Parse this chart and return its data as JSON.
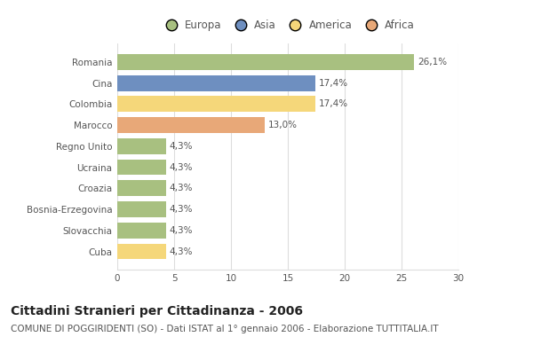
{
  "categories": [
    "Romania",
    "Cina",
    "Colombia",
    "Marocco",
    "Regno Unito",
    "Ucraina",
    "Croazia",
    "Bosnia-Erzegovina",
    "Slovacchia",
    "Cuba"
  ],
  "values": [
    26.1,
    17.4,
    17.4,
    13.0,
    4.3,
    4.3,
    4.3,
    4.3,
    4.3,
    4.3
  ],
  "labels": [
    "26,1%",
    "17,4%",
    "17,4%",
    "13,0%",
    "4,3%",
    "4,3%",
    "4,3%",
    "4,3%",
    "4,3%",
    "4,3%"
  ],
  "colors": [
    "#a8c080",
    "#6e8fc0",
    "#f5d77a",
    "#e8a878",
    "#a8c080",
    "#a8c080",
    "#a8c080",
    "#a8c080",
    "#a8c080",
    "#f5d77a"
  ],
  "legend_labels": [
    "Europa",
    "Asia",
    "America",
    "Africa"
  ],
  "legend_colors": [
    "#a8c080",
    "#6e8fc0",
    "#f5d77a",
    "#e8a878"
  ],
  "xlim": [
    0,
    30
  ],
  "xticks": [
    0,
    5,
    10,
    15,
    20,
    25,
    30
  ],
  "title": "Cittadini Stranieri per Cittadinanza - 2006",
  "subtitle": "COMUNE DI POGGIRIDENTI (SO) - Dati ISTAT al 1° gennaio 2006 - Elaborazione TUTTITALIA.IT",
  "background_color": "#ffffff",
  "bar_height": 0.75,
  "title_fontsize": 10,
  "subtitle_fontsize": 7.5,
  "label_fontsize": 7.5,
  "tick_fontsize": 7.5,
  "legend_fontsize": 8.5
}
